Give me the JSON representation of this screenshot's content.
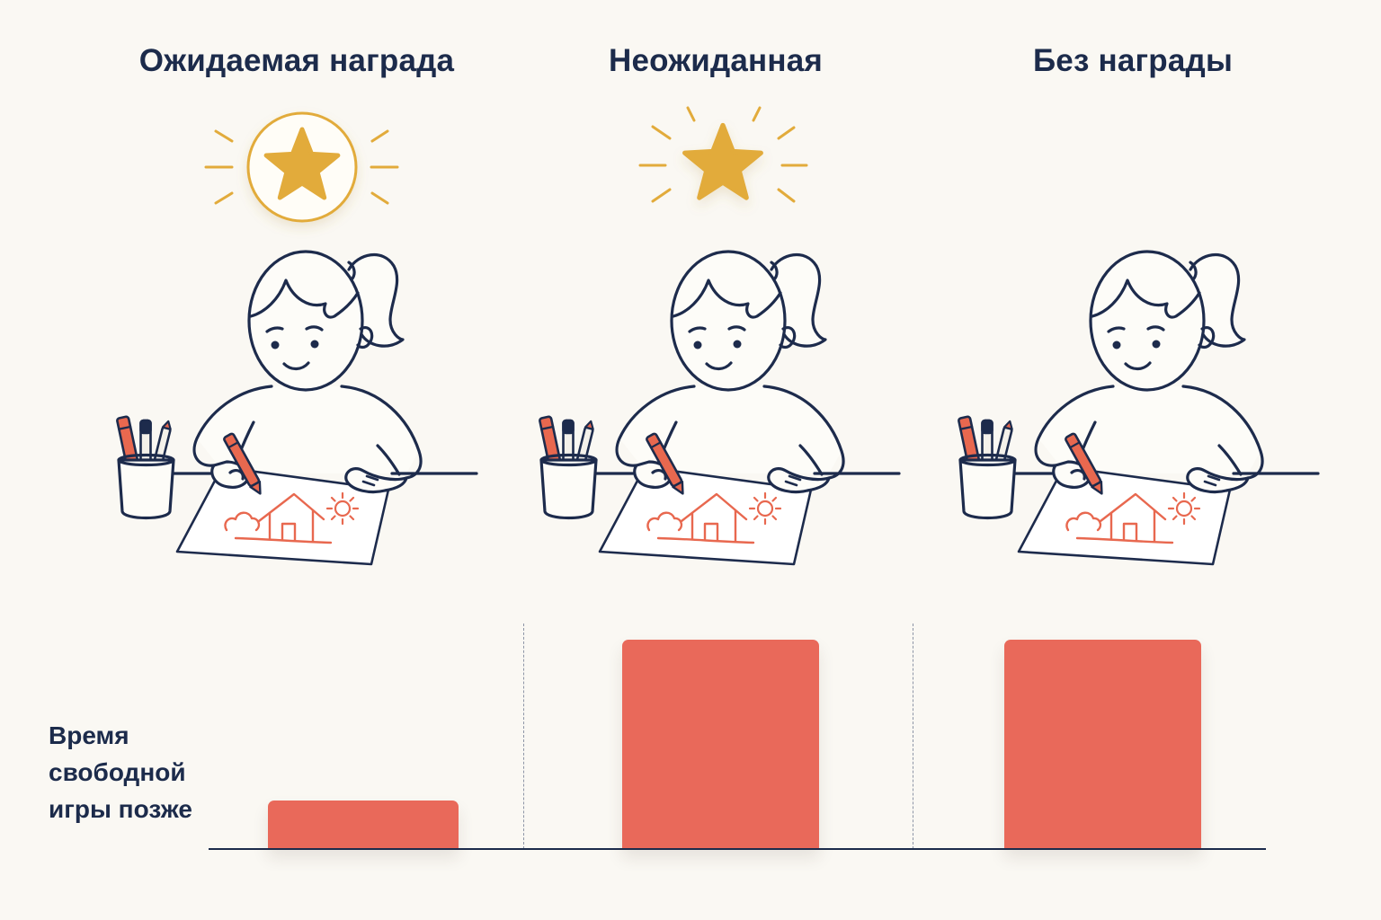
{
  "chart_data": {
    "type": "bar",
    "title": "",
    "xlabel": "",
    "ylabel": "Время\nсвободной\nигры позже",
    "categories": [
      "Ожидаемая награда",
      "Неожиданная",
      "Без награды"
    ],
    "values": [
      0.23,
      1,
      1
    ],
    "ylim": [
      0,
      1
    ],
    "grid": false,
    "legend": "none"
  },
  "panels": [
    {
      "reward_icon": "star-in-circle-icon",
      "illustration_icon": "child-drawing-icon"
    },
    {
      "reward_icon": "shining-star-icon",
      "illustration_icon": "child-drawing-icon"
    },
    {
      "reward_icon": "",
      "illustration_icon": "child-drawing-icon"
    }
  ],
  "colors": {
    "background": "#faf8f3",
    "ink": "#1c2b4b",
    "bar": "#e9695a",
    "star": "#e2ab3b",
    "crayon": "#e8684f"
  }
}
